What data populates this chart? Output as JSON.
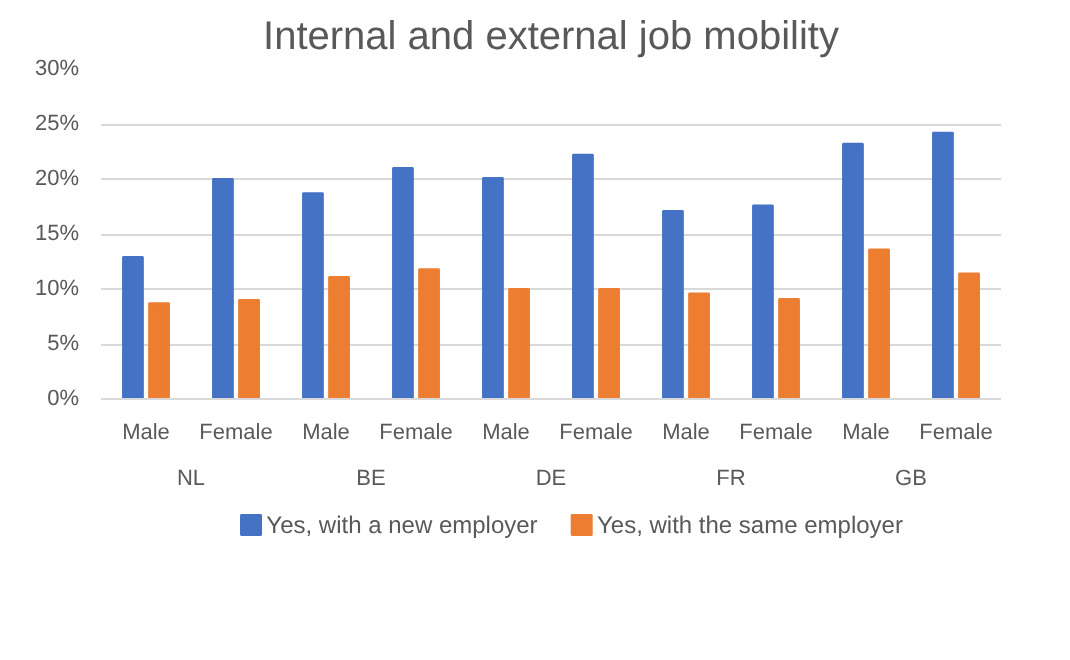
{
  "chart_data": {
    "type": "bar",
    "title": "Internal and external job mobility",
    "categories": [
      "Male",
      "Female",
      "Male",
      "Female",
      "Male",
      "Female",
      "Male",
      "Female",
      "Male",
      "Female"
    ],
    "annotations": [
      "NL",
      "BE",
      "DE",
      "FR",
      "GB"
    ],
    "series": [
      {
        "name": "Yes, with a new employer",
        "color": "#4472c4",
        "values": [
          12.9,
          20.0,
          18.7,
          21.0,
          20.1,
          22.2,
          17.1,
          17.6,
          23.2,
          24.2
        ]
      },
      {
        "name": "Yes, with the same employer",
        "color": "#ed7d31",
        "values": [
          8.7,
          9.0,
          11.1,
          11.8,
          10.0,
          10.0,
          9.6,
          9.1,
          13.6,
          11.4
        ]
      }
    ],
    "ylim": [
      0,
      30
    ],
    "yticks": [
      {
        "value": 0,
        "label": "0%"
      },
      {
        "value": 5,
        "label": "5%"
      },
      {
        "value": 10,
        "label": "10%"
      },
      {
        "value": 15,
        "label": "15%"
      },
      {
        "value": 20,
        "label": "20%"
      },
      {
        "value": 25,
        "label": "25%"
      },
      {
        "value": 30,
        "label": "30%"
      }
    ],
    "grid": "y",
    "legend": "bottom"
  }
}
